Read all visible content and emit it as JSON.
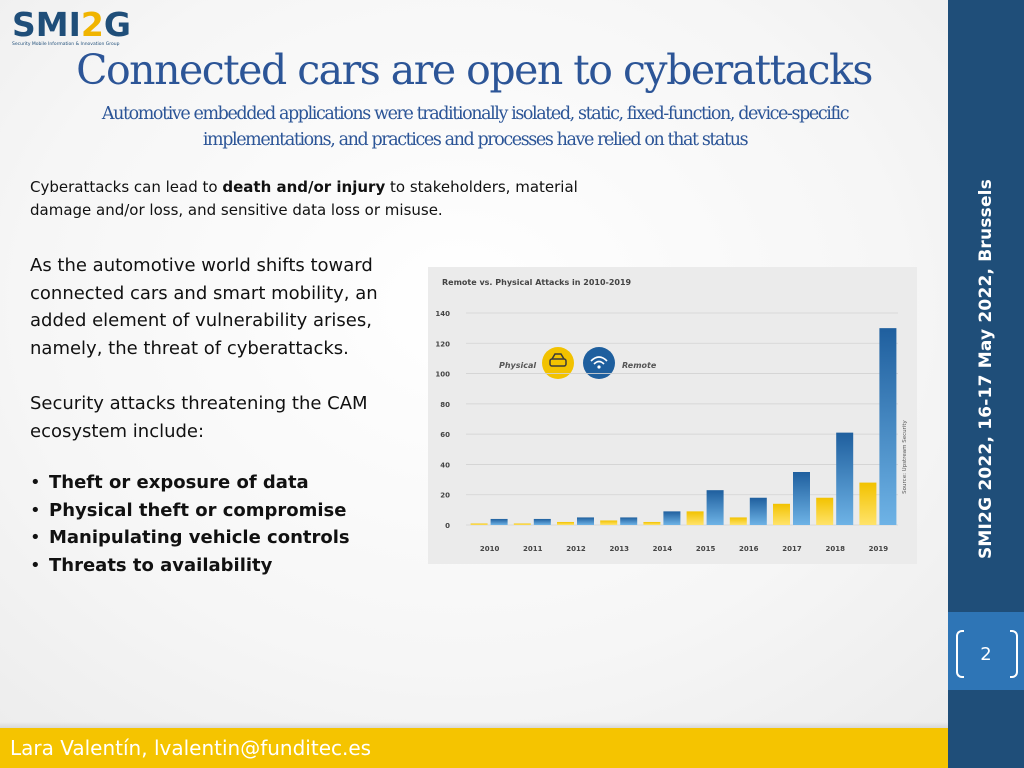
{
  "logo": {
    "main_a": "SMI",
    "main_b": "2",
    "main_c": "G",
    "sub": "Security Mobile Information & Innovation Group"
  },
  "title": "Connected cars are open to cyberattacks",
  "subtitle_line1": "Automotive embedded applications were traditionally isolated, static, fixed-function, device-specific",
  "subtitle_line2": "implementations, and practices and processes have relied on that status",
  "intro": {
    "part1": "Cyberattacks can lead to ",
    "bold": "death and/or injury",
    "part2": " to stakeholders, material damage and/or loss, and sensitive data loss or misuse."
  },
  "body1": "As the automotive world shifts toward connected cars and smart mobility, an added element of vulnerability arises, namely, the threat of cyberattacks.",
  "body2": "Security attacks threatening the CAM ecosystem include:",
  "bullets": [
    "Theft or exposure of data",
    "Physical theft or compromise",
    "Manipulating vehicle controls",
    "Threats to availability"
  ],
  "sidebar_text": "SMI2G 2022,  16-17 May 2022, Brussels",
  "page_number": "2",
  "footer": "Lara Valentín, lvalentin@funditec.es",
  "colors": {
    "brand_blue": "#1f4e79",
    "accent_yellow": "#f5c400",
    "title_blue": "#2c5597",
    "physical_bar": "#f2c200",
    "remote_bar": "#1f5f9e"
  },
  "chart_data": {
    "type": "bar",
    "title": "Remote vs. Physical Attacks in 2010-2019",
    "categories": [
      "2010",
      "2011",
      "2012",
      "2013",
      "2014",
      "2015",
      "2016",
      "2017",
      "2018",
      "2019"
    ],
    "series": [
      {
        "name": "Physical",
        "values": [
          1,
          1,
          2,
          3,
          2,
          9,
          5,
          14,
          18,
          28
        ]
      },
      {
        "name": "Remote",
        "values": [
          4,
          4,
          5,
          5,
          9,
          23,
          18,
          35,
          61,
          130
        ]
      }
    ],
    "yticks": [
      "0",
      "20",
      "40",
      "60",
      "80",
      "100",
      "120",
      "140"
    ],
    "ylim": [
      0,
      140
    ],
    "source": "Source: Upstream Security",
    "legend": "top-left",
    "grid": true
  }
}
